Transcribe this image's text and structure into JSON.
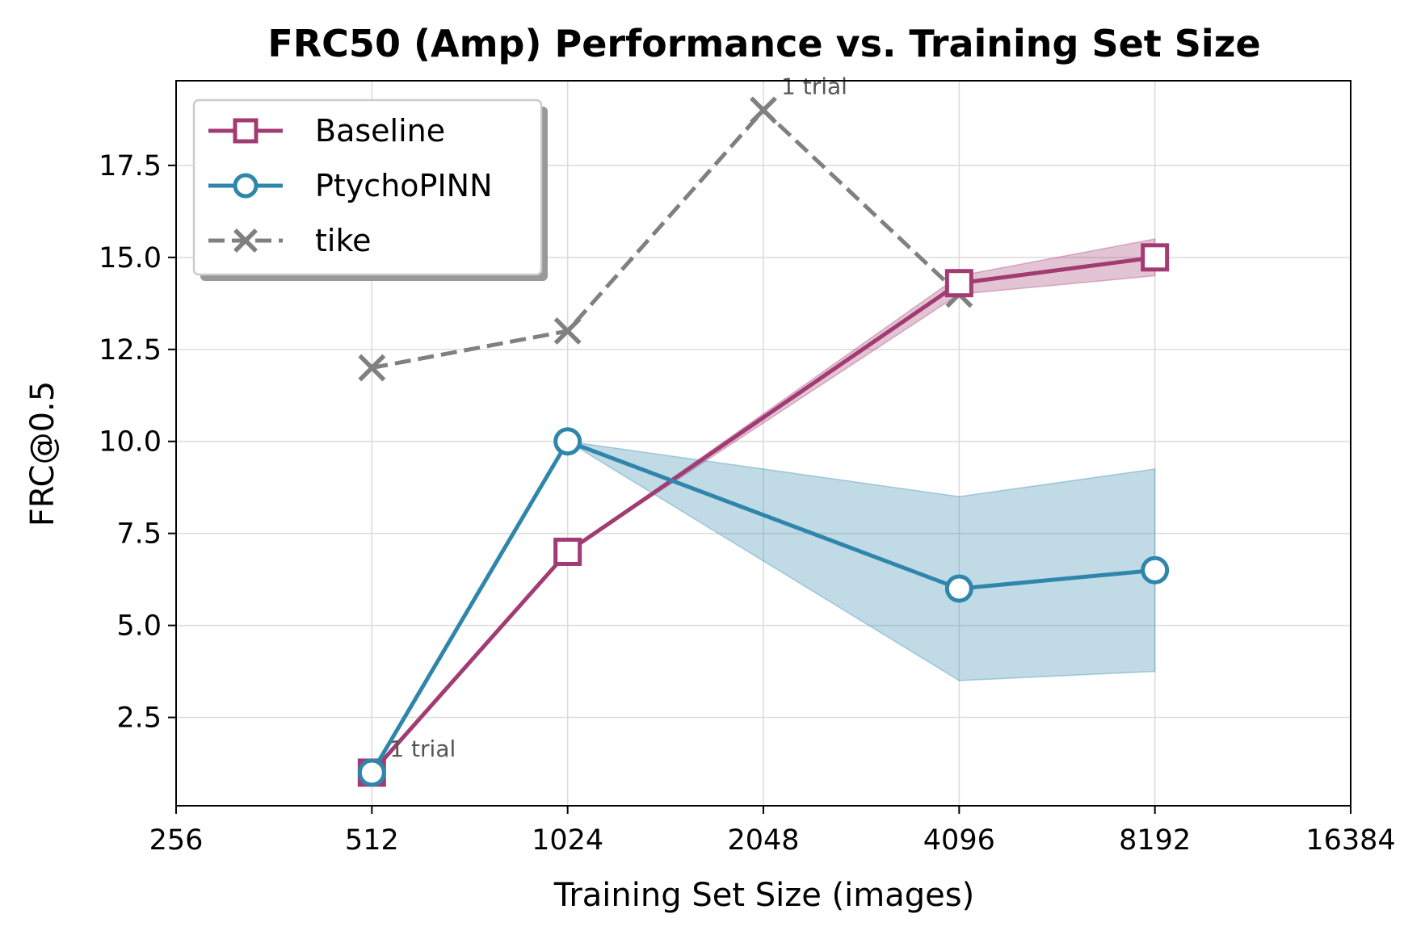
{
  "chart_data": {
    "type": "line",
    "title": "FRC50 (Amp) Performance vs. Training Set Size",
    "xlabel": "Training Set Size (images)",
    "ylabel": "FRC@0.5",
    "xscale": "log2",
    "xlim": [
      256,
      16384
    ],
    "ylim": [
      0.1,
      19.8
    ],
    "xticks": [
      256,
      512,
      1024,
      2048,
      4096,
      8192,
      16384
    ],
    "xtick_labels": [
      "256",
      "512",
      "1024",
      "2048",
      "4096",
      "8192",
      "16384"
    ],
    "yticks": [
      2.5,
      5.0,
      7.5,
      10.0,
      12.5,
      15.0,
      17.5
    ],
    "ytick_labels": [
      "2.5",
      "5.0",
      "7.5",
      "10.0",
      "12.5",
      "15.0",
      "17.5"
    ],
    "grid": true,
    "legend_position": "top-left",
    "series": [
      {
        "name": "Baseline",
        "color": "#a23b72",
        "marker": "square",
        "linestyle": "solid",
        "x": [
          512,
          1024,
          4096,
          8192
        ],
        "y": [
          1.0,
          7.0,
          14.3,
          15.0
        ],
        "band_lower": [
          1.0,
          7.0,
          14.0,
          14.5
        ],
        "band_upper": [
          1.0,
          7.0,
          14.5,
          15.5
        ]
      },
      {
        "name": "PtychoPINN",
        "color": "#2e86ab",
        "marker": "circle",
        "linestyle": "solid",
        "x": [
          512,
          1024,
          4096,
          8192
        ],
        "y": [
          1.0,
          10.0,
          6.0,
          6.5
        ],
        "band_lower": [
          1.0,
          10.0,
          3.5,
          3.75
        ],
        "band_upper": [
          1.0,
          10.0,
          8.5,
          9.25
        ]
      },
      {
        "name": "tike",
        "color": "#808080",
        "marker": "x",
        "linestyle": "dashed",
        "x": [
          512,
          1024,
          2048,
          4096
        ],
        "y": [
          12.0,
          13.0,
          19.0,
          14.0
        ]
      }
    ],
    "annotations": [
      {
        "text": "1 trial",
        "x": 512,
        "y": 1.0
      },
      {
        "text": "1 trial",
        "x": 2048,
        "y": 19.0
      }
    ]
  }
}
